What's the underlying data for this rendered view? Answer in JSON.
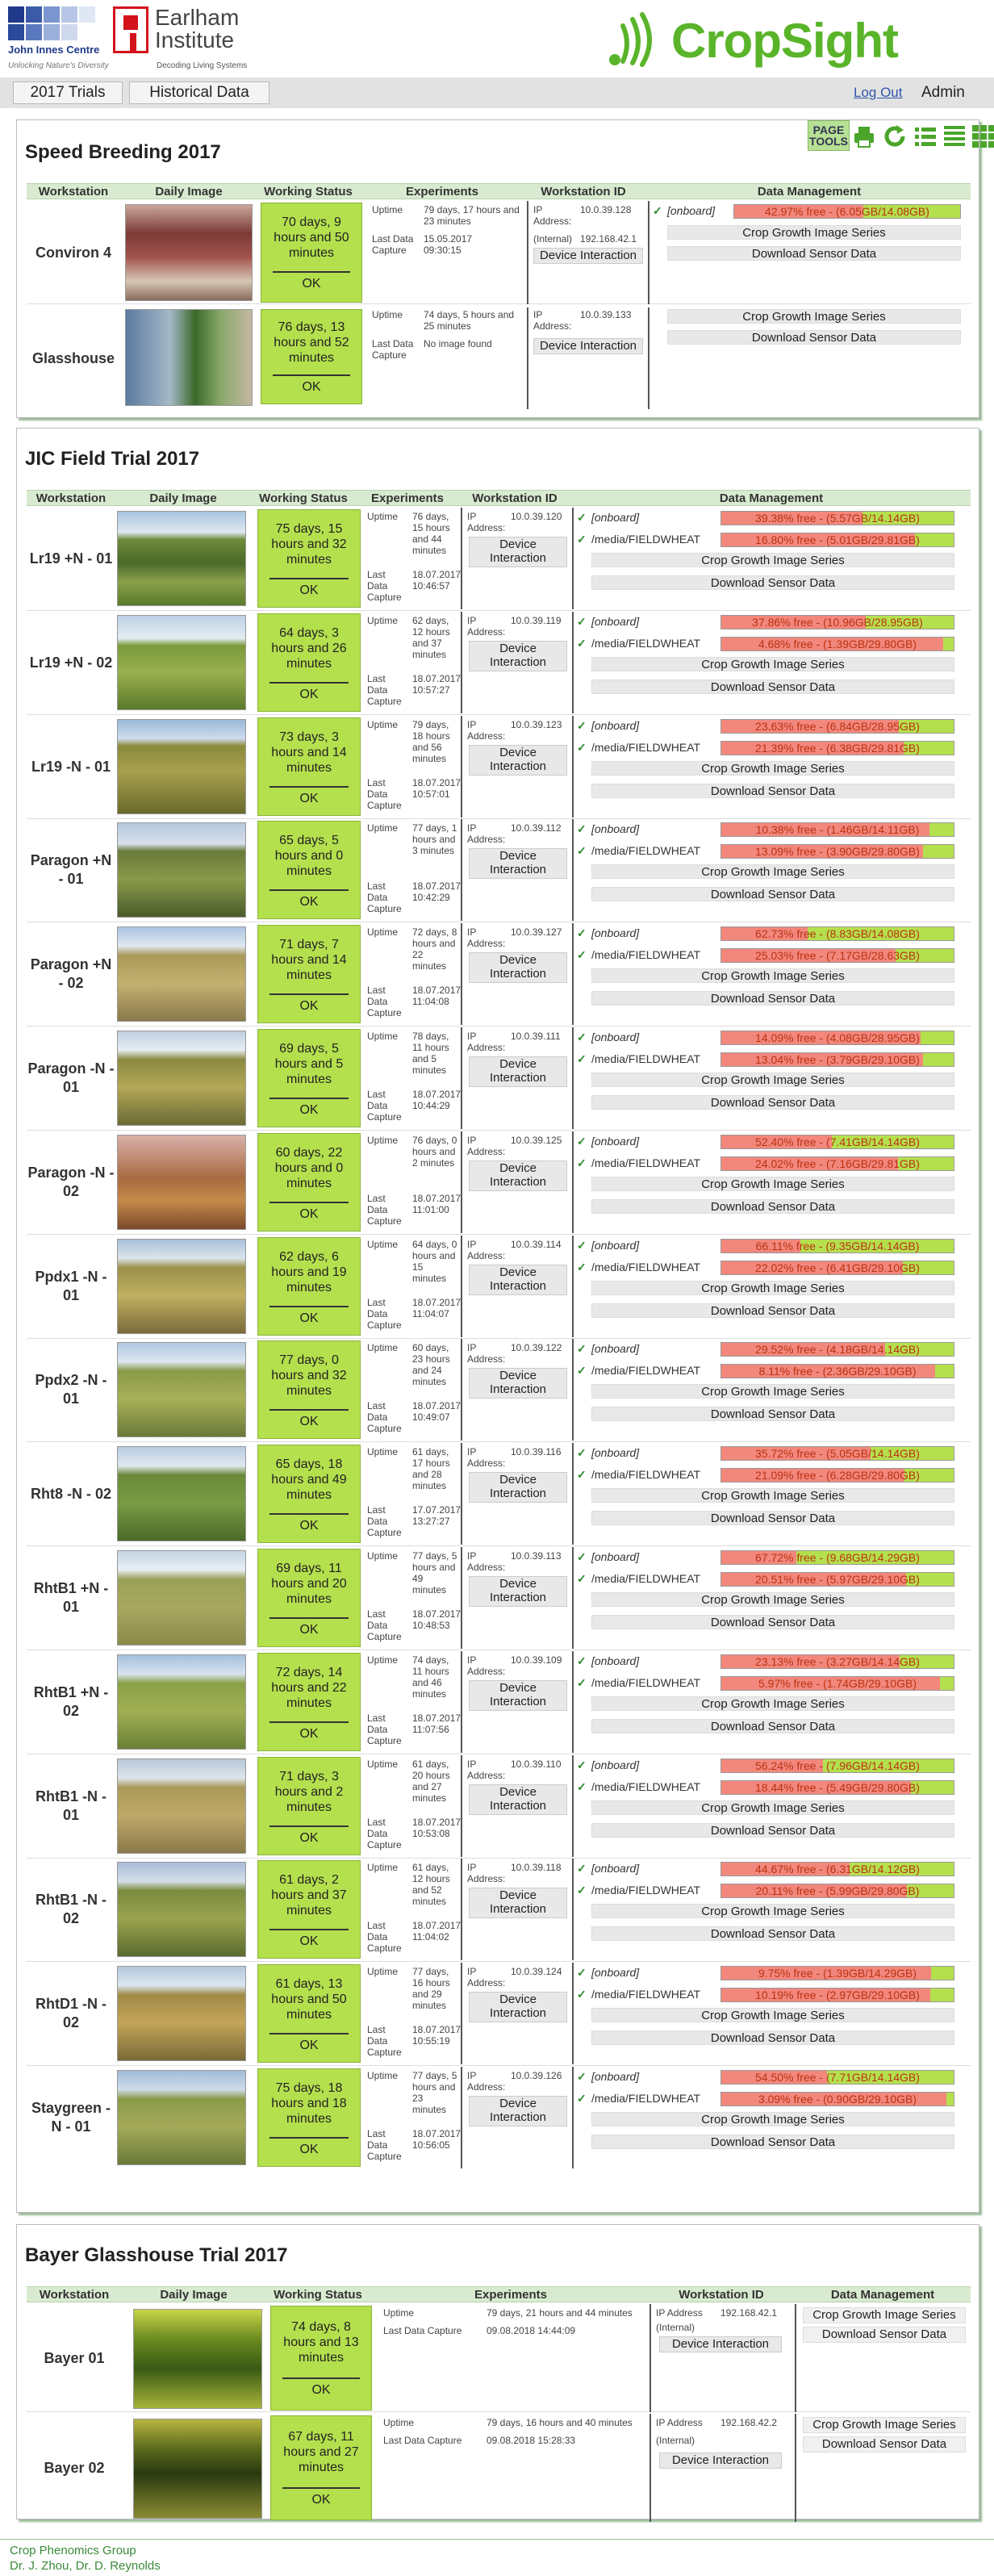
{
  "header": {
    "jic": {
      "name": "John Innes Centre",
      "tagline": "Unlocking Nature's Diversity"
    },
    "ei": {
      "name_line1": "Earlham",
      "name_line2": "Institute",
      "tagline": "Decoding Living Systems"
    },
    "cropsight": {
      "name": "CropSight",
      "color": "#5ab42a"
    }
  },
  "nav": {
    "tabs": [
      {
        "label": "2017 Trials"
      },
      {
        "label": "Historical Data"
      }
    ],
    "logout": "Log Out",
    "user": "Admin"
  },
  "page_tools": {
    "label_line1": "PAGE",
    "label_line2": "TOOLS",
    "icons": [
      "print-icon",
      "refresh-icon",
      "list-icon",
      "list-detail-icon",
      "grid-icon"
    ]
  },
  "columns": {
    "workstation": "Workstation",
    "daily_image": "Daily Image",
    "working_status": "Working Status",
    "experiments": "Experiments",
    "workstation_id": "Workstation ID",
    "data_management": "Data Management"
  },
  "labels": {
    "uptime": "Uptime",
    "last_data": "Last Data",
    "capture": "Capture",
    "last_data_capture": "Last Data Capture",
    "ip": "IP",
    "address": "Address:",
    "internal": "(Internal)",
    "ip_address": "IP Address",
    "device_interaction": "Device Interaction",
    "device": "Device",
    "interaction": "Interaction",
    "crop_growth": "Crop Growth Image Series",
    "download_sensor": "Download Sensor Data",
    "ok": "OK",
    "onboard": "[onboard]",
    "fieldwheat": "/media/FIELDWHEAT",
    "no_image": "No image found"
  },
  "speed": {
    "title": "Speed Breeding 2017",
    "rows": [
      {
        "name": "Conviron 4",
        "status": "70 days, 9 hours and 50 minutes",
        "uptime": "79 days, 17 hours and 23 minutes",
        "last": "15.05.2017 09:30:15",
        "ip": "10.0.39.128",
        "internal_ip": "192.168.42.1",
        "disks": [
          {
            "label": "[onboard]",
            "text": "42.97% free - (6.05GB/14.08GB)",
            "free": 0.4297
          }
        ]
      },
      {
        "name": "Glasshouse",
        "status": "76 days, 13 hours and 52 minutes",
        "uptime": "74 days, 5 hours and 25 minutes",
        "last": "No image found",
        "ip": "10.0.39.133",
        "disks": []
      }
    ]
  },
  "field": {
    "title": "JIC Field Trial 2017",
    "rows": [
      {
        "name": "Lr19 +N - 01",
        "status": "75 days, 15 hours and 32 minutes",
        "uptime": "76 days, 15 hours and 44 minutes",
        "last": "18.07.2017 10:46:57",
        "ip": "10.0.39.120",
        "d1": "39.38% free - (5.57GB/14.14GB)",
        "f1": 0.3938,
        "d2": "16.80% free - (5.01GB/29.81GB)",
        "f2": 0.168
      },
      {
        "name": "Lr19 +N - 02",
        "status": "64 days, 3 hours and 26 minutes",
        "uptime": "62 days, 12 hours and 37 minutes",
        "last": "18.07.2017 10:57:27",
        "ip": "10.0.39.119",
        "d1": "37.86% free - (10.96GB/28.95GB)",
        "f1": 0.3786,
        "d2": "4.68% free - (1.39GB/29.80GB)",
        "f2": 0.0468
      },
      {
        "name": "Lr19 -N - 01",
        "status": "73 days, 3 hours and 14 minutes",
        "uptime": "79 days, 18 hours and 56 minutes",
        "last": "18.07.2017 10:57:01",
        "ip": "10.0.39.123",
        "d1": "23.63% free - (6.84GB/28.95GB)",
        "f1": 0.2363,
        "d2": "21.39% free - (6.38GB/29.81GB)",
        "f2": 0.2139
      },
      {
        "name": "Paragon +N - 01",
        "status": "65 days, 5 hours and 0 minutes",
        "uptime": "77 days, 1 hours and 3 minutes",
        "last": "18.07.2017 10:42:29",
        "ip": "10.0.39.112",
        "d1": "10.38% free - (1.46GB/14.11GB)",
        "f1": 0.1038,
        "d2": "13.09% free - (3.90GB/29.80GB)",
        "f2": 0.1309
      },
      {
        "name": "Paragon +N - 02",
        "status": "71 days, 7 hours and 14 minutes",
        "uptime": "72 days, 8 hours and 22 minutes",
        "last": "18.07.2017 11:04:08",
        "ip": "10.0.39.127",
        "d1": "62.73% free - (8.83GB/14.08GB)",
        "f1": 0.6273,
        "d2": "25.03% free - (7.17GB/28.63GB)",
        "f2": 0.2503
      },
      {
        "name": "Paragon -N - 01",
        "status": "69 days, 5 hours and 5 minutes",
        "uptime": "78 days, 11 hours and 5 minutes",
        "last": "18.07.2017 10:44:29",
        "ip": "10.0.39.111",
        "d1": "14.09% free - (4.08GB/28.95GB)",
        "f1": 0.1409,
        "d2": "13.04% free - (3.79GB/29.10GB)",
        "f2": 0.1304
      },
      {
        "name": "Paragon -N - 02",
        "status": "60 days, 22 hours and 0 minutes",
        "uptime": "76 days, 0 hours and 2 minutes",
        "last": "18.07.2017 11:01:00",
        "ip": "10.0.39.125",
        "d1": "52.40% free - (7.41GB/14.14GB)",
        "f1": 0.524,
        "d2": "24.02% free - (7.16GB/29.81GB)",
        "f2": 0.2402
      },
      {
        "name": "Ppdx1 -N - 01",
        "status": "62 days, 6 hours and 19 minutes",
        "uptime": "64 days, 0 hours and 15 minutes",
        "last": "18.07.2017 11:04:07",
        "ip": "10.0.39.114",
        "d1": "66.11% free - (9.35GB/14.14GB)",
        "f1": 0.6611,
        "d2": "22.02% free - (6.41GB/29.10GB)",
        "f2": 0.2202
      },
      {
        "name": "Ppdx2 -N - 01",
        "status": "77 days, 0 hours and 32 minutes",
        "uptime": "60 days, 23 hours and 24 minutes",
        "last": "18.07.2017 10:49:07",
        "ip": "10.0.39.122",
        "d1": "29.52% free - (4.18GB/14.14GB)",
        "f1": 0.2952,
        "d2": "8.11% free - (2.36GB/29.10GB)",
        "f2": 0.0811
      },
      {
        "name": "Rht8 -N - 02",
        "status": "65 days, 18 hours and 49 minutes",
        "uptime": "61 days, 17 hours and 28 minutes",
        "last": "17.07.2017 13:27:27",
        "ip": "10.0.39.116",
        "d1": "35.72% free - (5.05GB/14.14GB)",
        "f1": 0.3572,
        "d2": "21.09% free - (6.28GB/29.80GB)",
        "f2": 0.2109
      },
      {
        "name": "RhtB1 +N - 01",
        "status": "69 days, 11 hours and 20 minutes",
        "uptime": "77 days, 5 hours and 49 minutes",
        "last": "18.07.2017 10:48:53",
        "ip": "10.0.39.113",
        "d1": "67.72% free - (9.68GB/14.29GB)",
        "f1": 0.6772,
        "d2": "20.51% free - (5.97GB/29.10GB)",
        "f2": 0.2051
      },
      {
        "name": "RhtB1 +N - 02",
        "status": "72 days, 14 hours and 22 minutes",
        "uptime": "74 days, 11 hours and 46 minutes",
        "last": "18.07.2017 11:07:56",
        "ip": "10.0.39.109",
        "d1": "23.13% free - (3.27GB/14.14GB)",
        "f1": 0.2313,
        "d2": "5.97% free - (1.74GB/29.10GB)",
        "f2": 0.0597
      },
      {
        "name": "RhtB1 -N - 01",
        "status": "71 days, 3 hours and 2 minutes",
        "uptime": "61 days, 20 hours and 27 minutes",
        "last": "18.07.2017 10:53:08",
        "ip": "10.0.39.110",
        "d1": "56.24% free - (7.96GB/14.14GB)",
        "f1": 0.5624,
        "d2": "18.44% free - (5.49GB/29.80GB)",
        "f2": 0.1844
      },
      {
        "name": "RhtB1 -N - 02",
        "status": "61 days, 2 hours and 37 minutes",
        "uptime": "61 days, 12 hours and 52 minutes",
        "last": "18.07.2017 11:04:02",
        "ip": "10.0.39.118",
        "d1": "44.67% free - (6.31GB/14.12GB)",
        "f1": 0.4467,
        "d2": "20.11% free - (5.99GB/29.80GB)",
        "f2": 0.2011
      },
      {
        "name": "RhtD1 -N - 02",
        "status": "61 days, 13 hours and 50 minutes",
        "uptime": "77 days, 16 hours and 29 minutes",
        "last": "18.07.2017 10:55:19",
        "ip": "10.0.39.124",
        "d1": "9.75% free - (1.39GB/14.29GB)",
        "f1": 0.0975,
        "d2": "10.19% free - (2.97GB/29.10GB)",
        "f2": 0.1019
      },
      {
        "name": "Staygreen - N - 01",
        "status": "75 days, 18 hours and 18 minutes",
        "uptime": "77 days, 5 hours and 23 minutes",
        "last": "18.07.2017 10:56:05",
        "ip": "10.0.39.126",
        "d1": "54.50% free - (7.71GB/14.14GB)",
        "f1": 0.545,
        "d2": "3.09% free - (0.90GB/29.10GB)",
        "f2": 0.0309
      }
    ]
  },
  "bayer": {
    "title": "Bayer Glasshouse Trial 2017",
    "rows": [
      {
        "name": "Bayer 01",
        "status": "74 days, 8 hours and 13 minutes",
        "uptime": "79 days, 21 hours and 44 minutes",
        "last": "09.08.2018 14:44:09",
        "ip": "192.168.42.1"
      },
      {
        "name": "Bayer 02",
        "status": "67 days, 11 hours and 27 minutes",
        "uptime": "79 days, 16 hours and 40 minutes",
        "last": "09.08.2018 15:28:33",
        "ip": "192.168.42.2"
      }
    ]
  },
  "footer": {
    "line1": "Crop Phenomics Group",
    "line2": "Dr. J. Zhou, Dr. D. Reynolds"
  }
}
